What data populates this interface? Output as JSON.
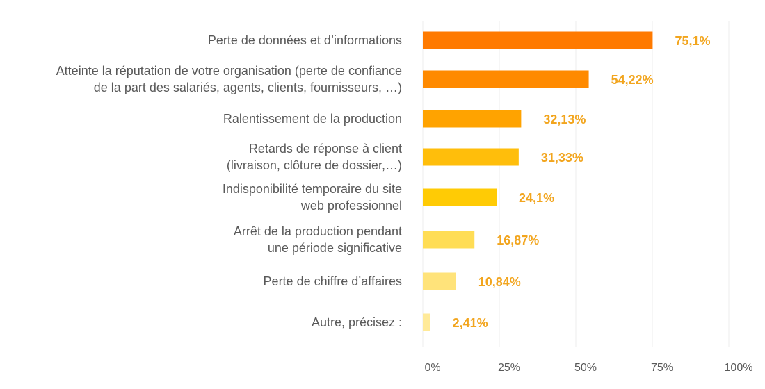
{
  "chart_data": {
    "type": "bar",
    "orientation": "horizontal",
    "categories": [
      [
        "Perte de données et d’informations"
      ],
      [
        "Atteinte la réputation de votre organisation (perte de confiance",
        "de la part des salariés, agents, clients, fournisseurs, …)"
      ],
      [
        "Ralentissement de la production"
      ],
      [
        "Retards de réponse à client",
        "(livraison, clôture de dossier,…)"
      ],
      [
        "Indisponibilité temporaire du site",
        "web professionnel"
      ],
      [
        "Arrêt de la production pendant",
        "une période significative"
      ],
      [
        "Perte de chiffre d’affaires"
      ],
      [
        "Autre, précisez :"
      ]
    ],
    "values": [
      75.1,
      54.22,
      32.13,
      31.33,
      24.1,
      16.87,
      10.84,
      2.41
    ],
    "value_labels": [
      "75,1%",
      "54,22%",
      "32,13%",
      "31,33%",
      "24,1%",
      "16,87%",
      "10,84%",
      "2,41%"
    ],
    "bar_colors": [
      "#FF7A00",
      "#FF8A00",
      "#FFA300",
      "#FFBE0B",
      "#FFCB05",
      "#FFDD55",
      "#FFE37A",
      "#FFEA99"
    ],
    "value_label_color": "#F2A51E",
    "xlim": [
      0,
      100
    ],
    "xticks": [
      0,
      25,
      50,
      75,
      100
    ],
    "xtick_labels": [
      "0%",
      "25%",
      "50%",
      "75%",
      "100%"
    ],
    "grid": true,
    "legend": "none"
  }
}
